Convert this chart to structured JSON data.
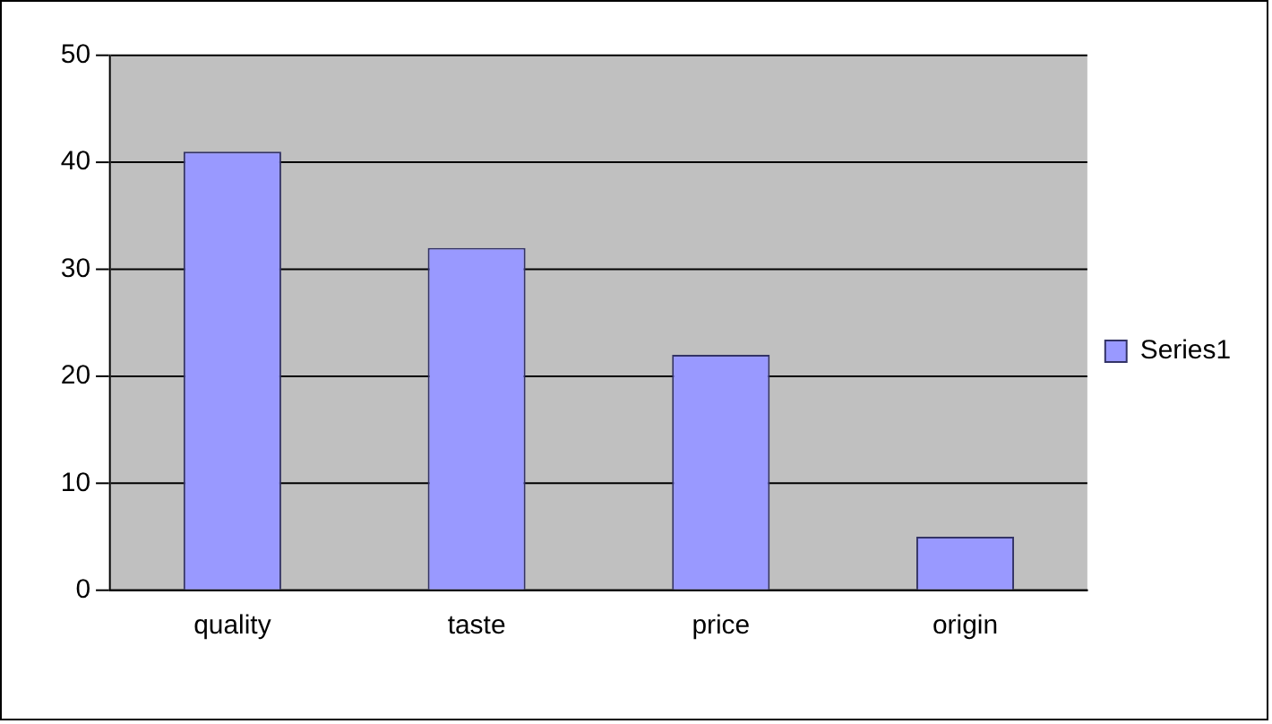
{
  "chart_data": {
    "type": "bar",
    "categories": [
      "quality",
      "taste",
      "price",
      "origin"
    ],
    "series": [
      {
        "name": "Series1",
        "color": "#9999ff",
        "values": [
          41,
          32,
          22,
          5
        ]
      }
    ],
    "ylim": [
      0,
      50
    ],
    "yticks": [
      0,
      10,
      20,
      30,
      40,
      50
    ],
    "grid": "y",
    "legend": "right"
  }
}
